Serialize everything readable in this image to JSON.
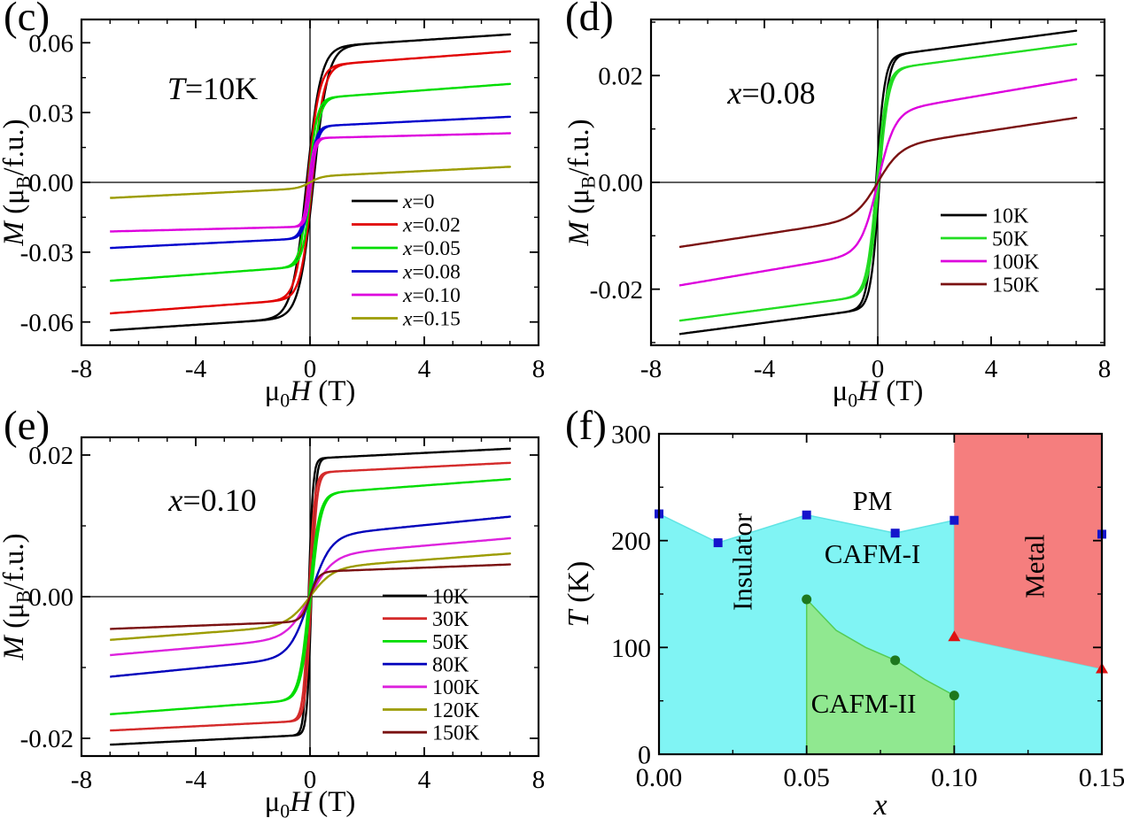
{
  "figure_background": "#ffffff",
  "chart_data": [
    {
      "type": "line",
      "panel_label": "(c)",
      "annotation": "T=10K",
      "annotation_parts": [
        {
          "t": "T",
          "s": "i"
        },
        {
          "t": "=10K"
        }
      ],
      "xlabel": "μ0H (T)",
      "xlabel_parts": [
        {
          "t": "μ"
        },
        {
          "t": "0",
          "s": "sub"
        },
        {
          "t": "H",
          "s": "i"
        },
        {
          "t": " (T)"
        }
      ],
      "ylabel": "M (μB/f.u.)",
      "ylabel_parts": [
        {
          "t": "M",
          "s": "i"
        },
        {
          "t": " (μ"
        },
        {
          "t": "B",
          "s": "sub"
        },
        {
          "t": "/f.u.)"
        }
      ],
      "xlim": [
        -8,
        8
      ],
      "ylim": [
        -0.07,
        0.07
      ],
      "field_range_T": [
        -7,
        7
      ],
      "xticks": [
        {
          "v": -8,
          "l": "-8"
        },
        {
          "v": -4,
          "l": "-4"
        },
        {
          "v": 0,
          "l": "0"
        },
        {
          "v": 4,
          "l": "4"
        },
        {
          "v": 8,
          "l": "8"
        }
      ],
      "xminors": [
        -7,
        -6,
        -5,
        -3,
        -2,
        -1,
        1,
        2,
        3,
        5,
        6,
        7
      ],
      "yticks": [
        {
          "v": 0.06,
          "l": "0.06"
        },
        {
          "v": 0.03,
          "l": "0.03"
        },
        {
          "v": 0,
          "l": "0.00"
        },
        {
          "v": -0.03,
          "l": "-0.03"
        },
        {
          "v": -0.06,
          "l": "-0.06"
        }
      ],
      "yminors": [
        0.045,
        0.015,
        -0.015,
        -0.045
      ],
      "legend_position": "inside-right-below-center",
      "series": [
        {
          "label": "x=0",
          "label_parts": [
            {
              "t": "x",
              "s": "i"
            },
            {
              "t": "=0"
            }
          ],
          "color": "#000000",
          "M_at_7T": 0.063,
          "model": {
            "Ms": 0.058,
            "w": 0.5,
            "slope": 0.0008,
            "hc": 0.12
          }
        },
        {
          "label": "x=0.02",
          "label_parts": [
            {
              "t": "x",
              "s": "i"
            },
            {
              "t": "=0.02"
            }
          ],
          "color": "#e10000",
          "M_at_7T": 0.056,
          "model": {
            "Ms": 0.05,
            "w": 0.4,
            "slope": 0.0009,
            "hc": 0.08
          }
        },
        {
          "label": "x=0.05",
          "label_parts": [
            {
              "t": "x",
              "s": "i"
            },
            {
              "t": "=0.05"
            }
          ],
          "color": "#00dd00",
          "M_at_7T": 0.042,
          "model": {
            "Ms": 0.036,
            "w": 0.3,
            "slope": 0.0009,
            "hc": 0.05
          }
        },
        {
          "label": "x=0.08",
          "label_parts": [
            {
              "t": "x",
              "s": "i"
            },
            {
              "t": "=0.08"
            }
          ],
          "color": "#0000cc",
          "M_at_7T": 0.028,
          "model": {
            "Ms": 0.024,
            "w": 0.25,
            "slope": 0.0006,
            "hc": 0.04
          }
        },
        {
          "label": "x=0.10",
          "label_parts": [
            {
              "t": "x",
              "s": "i"
            },
            {
              "t": "=0.10"
            }
          ],
          "color": "#dd00dd",
          "M_at_7T": 0.021,
          "model": {
            "Ms": 0.019,
            "w": 0.18,
            "slope": 0.0003,
            "hc": 0.04
          }
        },
        {
          "label": "x=0.15",
          "label_parts": [
            {
              "t": "x",
              "s": "i"
            },
            {
              "t": "=0.15"
            }
          ],
          "color": "#9c9c00",
          "M_at_7T": 0.007,
          "model": {
            "Ms": 0.0025,
            "w": 0.4,
            "slope": 0.0006,
            "hc": 0
          }
        }
      ]
    },
    {
      "type": "line",
      "panel_label": "(d)",
      "annotation": "x=0.08",
      "annotation_parts": [
        {
          "t": "x",
          "s": "i"
        },
        {
          "t": "=0.08"
        }
      ],
      "xlabel": "μ0H (T)",
      "xlabel_parts": [
        {
          "t": "μ"
        },
        {
          "t": "0",
          "s": "sub"
        },
        {
          "t": "H",
          "s": "i"
        },
        {
          "t": " (T)"
        }
      ],
      "ylabel": "M (μB/f.u.)",
      "ylabel_parts": [
        {
          "t": "M",
          "s": "i"
        },
        {
          "t": " (μ"
        },
        {
          "t": "B",
          "s": "sub"
        },
        {
          "t": "/f.u.)"
        }
      ],
      "xlim": [
        -8,
        8
      ],
      "ylim": [
        -0.0305,
        0.0305
      ],
      "field_range_T": [
        -7,
        7
      ],
      "xticks": [
        {
          "v": -8,
          "l": "-8"
        },
        {
          "v": -4,
          "l": "-4"
        },
        {
          "v": 0,
          "l": "0"
        },
        {
          "v": 4,
          "l": "4"
        },
        {
          "v": 8,
          "l": "8"
        }
      ],
      "xminors": [
        -7,
        -6,
        -5,
        -3,
        -2,
        -1,
        1,
        2,
        3,
        5,
        6,
        7
      ],
      "yticks": [
        {
          "v": 0.02,
          "l": "0.02"
        },
        {
          "v": 0,
          "l": "0.00"
        },
        {
          "v": -0.02,
          "l": "-0.02"
        }
      ],
      "yminors": [
        0.03,
        0.01,
        -0.01,
        -0.03
      ],
      "legend_position": "inside-right-below-center",
      "series": [
        {
          "label": "10K",
          "label_parts": [
            {
              "t": "10K"
            }
          ],
          "color": "#000000",
          "M_at_7T": 0.028,
          "model": {
            "Ms": 0.0235,
            "w": 0.3,
            "slope": 0.0007,
            "hc": 0.06
          }
        },
        {
          "label": "50K",
          "label_parts": [
            {
              "t": "50K"
            }
          ],
          "color": "#22dd22",
          "M_at_7T": 0.026,
          "model": {
            "Ms": 0.021,
            "w": 0.35,
            "slope": 0.0007,
            "hc": 0.04
          }
        },
        {
          "label": "100K",
          "label_parts": [
            {
              "t": "100K"
            }
          ],
          "color": "#dd00dd",
          "M_at_7T": 0.019,
          "model": {
            "Ms": 0.013,
            "w": 0.6,
            "slope": 0.0009,
            "hc": 0
          }
        },
        {
          "label": "150K",
          "label_parts": [
            {
              "t": "150K"
            }
          ],
          "color": "#7a1111",
          "M_at_7T": 0.012,
          "model": {
            "Ms": 0.0065,
            "w": 0.8,
            "slope": 0.0008,
            "hc": 0
          }
        }
      ]
    },
    {
      "type": "line",
      "panel_label": "(e)",
      "annotation": "x=0.10",
      "annotation_parts": [
        {
          "t": "x",
          "s": "i"
        },
        {
          "t": "=0.10"
        }
      ],
      "xlabel": "μ0H (T)",
      "xlabel_parts": [
        {
          "t": "μ"
        },
        {
          "t": "0",
          "s": "sub"
        },
        {
          "t": "H",
          "s": "i"
        },
        {
          "t": " (T)"
        }
      ],
      "ylabel": "M (μB/f.u.)",
      "ylabel_parts": [
        {
          "t": "M",
          "s": "i"
        },
        {
          "t": " (μ"
        },
        {
          "t": "B",
          "s": "sub"
        },
        {
          "t": "/f.u.)"
        }
      ],
      "xlim": [
        -8,
        8
      ],
      "ylim": [
        -0.0225,
        0.0225
      ],
      "field_range_T": [
        -7,
        7
      ],
      "xticks": [
        {
          "v": -8,
          "l": "-8"
        },
        {
          "v": -4,
          "l": "-4"
        },
        {
          "v": 0,
          "l": "0"
        },
        {
          "v": 4,
          "l": "4"
        },
        {
          "v": 8,
          "l": "8"
        }
      ],
      "xminors": [
        -7,
        -6,
        -5,
        -3,
        -2,
        -1,
        1,
        2,
        3,
        5,
        6,
        7
      ],
      "yticks": [
        {
          "v": 0.02,
          "l": "0.02"
        },
        {
          "v": 0,
          "l": "0.00"
        },
        {
          "v": -0.02,
          "l": "-0.02"
        }
      ],
      "yminors": [
        0.01,
        -0.01
      ],
      "legend_position": "inside-right-center",
      "series": [
        {
          "label": "10K",
          "label_parts": [
            {
              "t": "10K"
            }
          ],
          "color": "#000000",
          "M_at_7T": 0.021,
          "model": {
            "Ms": 0.0195,
            "w": 0.15,
            "slope": 0.0002,
            "hc": 0.05
          }
        },
        {
          "label": "30K",
          "label_parts": [
            {
              "t": "30K"
            }
          ],
          "color": "#d42a2a",
          "M_at_7T": 0.019,
          "model": {
            "Ms": 0.0175,
            "w": 0.2,
            "slope": 0.0002,
            "hc": 0.04
          }
        },
        {
          "label": "50K",
          "label_parts": [
            {
              "t": "50K"
            }
          ],
          "color": "#00dd00",
          "M_at_7T": 0.0165,
          "model": {
            "Ms": 0.0145,
            "w": 0.35,
            "slope": 0.0003,
            "hc": 0.03
          }
        },
        {
          "label": "80K",
          "label_parts": [
            {
              "t": "80K"
            }
          ],
          "color": "#0000bb",
          "M_at_7T": 0.011,
          "model": {
            "Ms": 0.0085,
            "w": 0.7,
            "slope": 0.0004,
            "hc": 0
          }
        },
        {
          "label": "100K",
          "label_parts": [
            {
              "t": "100K"
            }
          ],
          "color": "#dd22dd",
          "M_at_7T": 0.008,
          "model": {
            "Ms": 0.0058,
            "w": 0.8,
            "slope": 0.00035,
            "hc": 0
          }
        },
        {
          "label": "120K",
          "label_parts": [
            {
              "t": "120K"
            }
          ],
          "color": "#9c9c00",
          "M_at_7T": 0.006,
          "model": {
            "Ms": 0.004,
            "w": 0.8,
            "slope": 0.0003,
            "hc": 0
          }
        },
        {
          "label": "150K",
          "label_parts": [
            {
              "t": "150K"
            }
          ],
          "color": "#7a1111",
          "M_at_7T": 0.0045,
          "model": {
            "Ms": 0.0035,
            "w": 0.3,
            "slope": 0.00015,
            "hc": 0
          }
        }
      ]
    },
    {
      "type": "area",
      "subtype": "phase-diagram",
      "panel_label": "(f)",
      "xlabel": "x",
      "xlabel_parts": [
        {
          "t": "x",
          "s": "i"
        }
      ],
      "ylabel": "T (K)",
      "ylabel_parts": [
        {
          "t": "T",
          "s": "i"
        },
        {
          "t": " (K)"
        }
      ],
      "xlim": [
        0,
        0.15
      ],
      "ylim": [
        0,
        300
      ],
      "xticks": [
        {
          "v": 0,
          "l": "0.00"
        },
        {
          "v": 0.05,
          "l": "0.05"
        },
        {
          "v": 0.1,
          "l": "0.10"
        },
        {
          "v": 0.15,
          "l": "0.15"
        }
      ],
      "xminors": [
        0.025,
        0.075,
        0.125
      ],
      "yticks": [
        {
          "v": 0,
          "l": "0"
        },
        {
          "v": 100,
          "l": "100"
        },
        {
          "v": 200,
          "l": "200"
        },
        {
          "v": 300,
          "l": "300"
        }
      ],
      "yminors": [
        50,
        150,
        250
      ],
      "regions": [
        {
          "name": "CAFM-I",
          "fill": "#80f4f4",
          "stroke": "#5fe4e4",
          "points": [
            [
              0,
              0
            ],
            [
              0,
              225
            ],
            [
              0.02,
              198
            ],
            [
              0.05,
              224
            ],
            [
              0.08,
              207
            ],
            [
              0.1,
              219
            ],
            [
              0.1,
              110
            ],
            [
              0.15,
              80
            ],
            [
              0.15,
              0
            ]
          ]
        },
        {
          "name": "Metal",
          "fill": "#f57e7e",
          "stroke": "none",
          "points": [
            [
              0.1,
              300
            ],
            [
              0.15,
              300
            ],
            [
              0.15,
              80
            ],
            [
              0.1,
              110
            ]
          ]
        },
        {
          "name": "CAFM-II",
          "fill": "#90e890",
          "stroke": "#55cc55",
          "points": [
            [
              0.05,
              0
            ],
            [
              0.05,
              145
            ],
            [
              0.06,
              116
            ],
            [
              0.07,
              100
            ],
            [
              0.08,
              88
            ],
            [
              0.09,
              70
            ],
            [
              0.1,
              55
            ],
            [
              0.1,
              0
            ]
          ]
        }
      ],
      "region_labels": [
        {
          "text": "Insulator",
          "x": 0.028,
          "T": 180,
          "rot": -90
        },
        {
          "text": "PM",
          "x": 0.0723,
          "T": 238,
          "rot": 0
        },
        {
          "text": "CAFM-I",
          "x": 0.0723,
          "T": 188,
          "rot": 0
        },
        {
          "text": "Metal",
          "x": 0.127,
          "T": 176,
          "rot": -90
        },
        {
          "text": "CAFM-II",
          "x": 0.0693,
          "T": 48,
          "rot": 0
        }
      ],
      "points": [
        {
          "name": "neel-temperature-squares",
          "marker": "square",
          "color": "#1515cc",
          "data": [
            [
              0,
              225
            ],
            [
              0.02,
              198
            ],
            [
              0.05,
              224
            ],
            [
              0.08,
              207
            ],
            [
              0.1,
              219
            ],
            [
              0.15,
              206
            ]
          ]
        },
        {
          "name": "cafm2-transition-circles",
          "marker": "circle",
          "color": "#1e781e",
          "data": [
            [
              0.05,
              145
            ],
            [
              0.08,
              88
            ],
            [
              0.1,
              55
            ]
          ]
        },
        {
          "name": "metal-insulator-triangles",
          "marker": "triangle",
          "color": "#dd1111",
          "data": [
            [
              0.1,
              110
            ],
            [
              0.15,
              80
            ]
          ]
        }
      ]
    }
  ]
}
